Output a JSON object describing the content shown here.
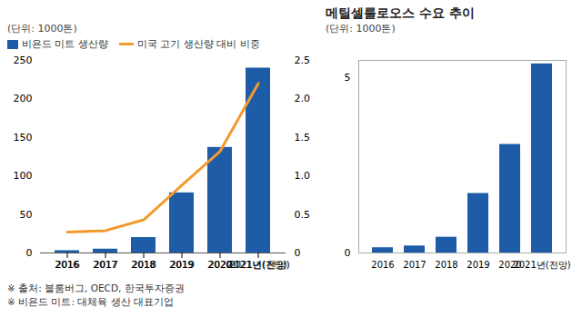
{
  "chart_data": [
    {
      "type": "bar",
      "subtitle": "(단위: 1000톤)",
      "categories": [
        "2016",
        "2017",
        "2018",
        "2019",
        "2020",
        "2021년(전망)"
      ],
      "series": [
        {
          "name": "비욘드 미트 생산량",
          "type": "bar",
          "color": "#1f5ca8",
          "values": [
            3,
            5,
            20,
            78,
            137,
            240
          ]
        },
        {
          "name": "미국 고기 생산량 대비 비중",
          "type": "line",
          "axis": "y2",
          "color": "#f39a2d",
          "values": [
            0.27,
            0.29,
            0.43,
            0.88,
            1.32,
            2.2
          ]
        }
      ],
      "ylim": [
        0,
        250
      ],
      "yticks": [
        0,
        50,
        100,
        150,
        200,
        250
      ],
      "y2lim": [
        0,
        2.5
      ],
      "y2ticks": [
        0,
        0.5,
        {
          "value": 1,
          "label": "1.0"
        },
        1.5,
        {
          "value": 2,
          "label": "2.0"
        },
        2.5
      ],
      "legend": "top-left",
      "annotations": [
        "※ 출처: 블룸버그, OECD, 한국투자증권",
        "※ 비욘드 미트: 대체육 생산 대표기업"
      ]
    },
    {
      "type": "bar",
      "title": "메틸셀룰로오스 수요 추이",
      "subtitle": "(단위: 1000톤)",
      "categories": [
        "2016",
        "2017",
        "2018",
        "2019",
        "2020",
        "2021년(전망)"
      ],
      "values": [
        0.15,
        0.2,
        0.45,
        1.7,
        3.1,
        5.4
      ],
      "color": "#1f5ca8",
      "ylim": [
        0,
        5.5
      ],
      "yticks": [
        0,
        5
      ]
    }
  ]
}
